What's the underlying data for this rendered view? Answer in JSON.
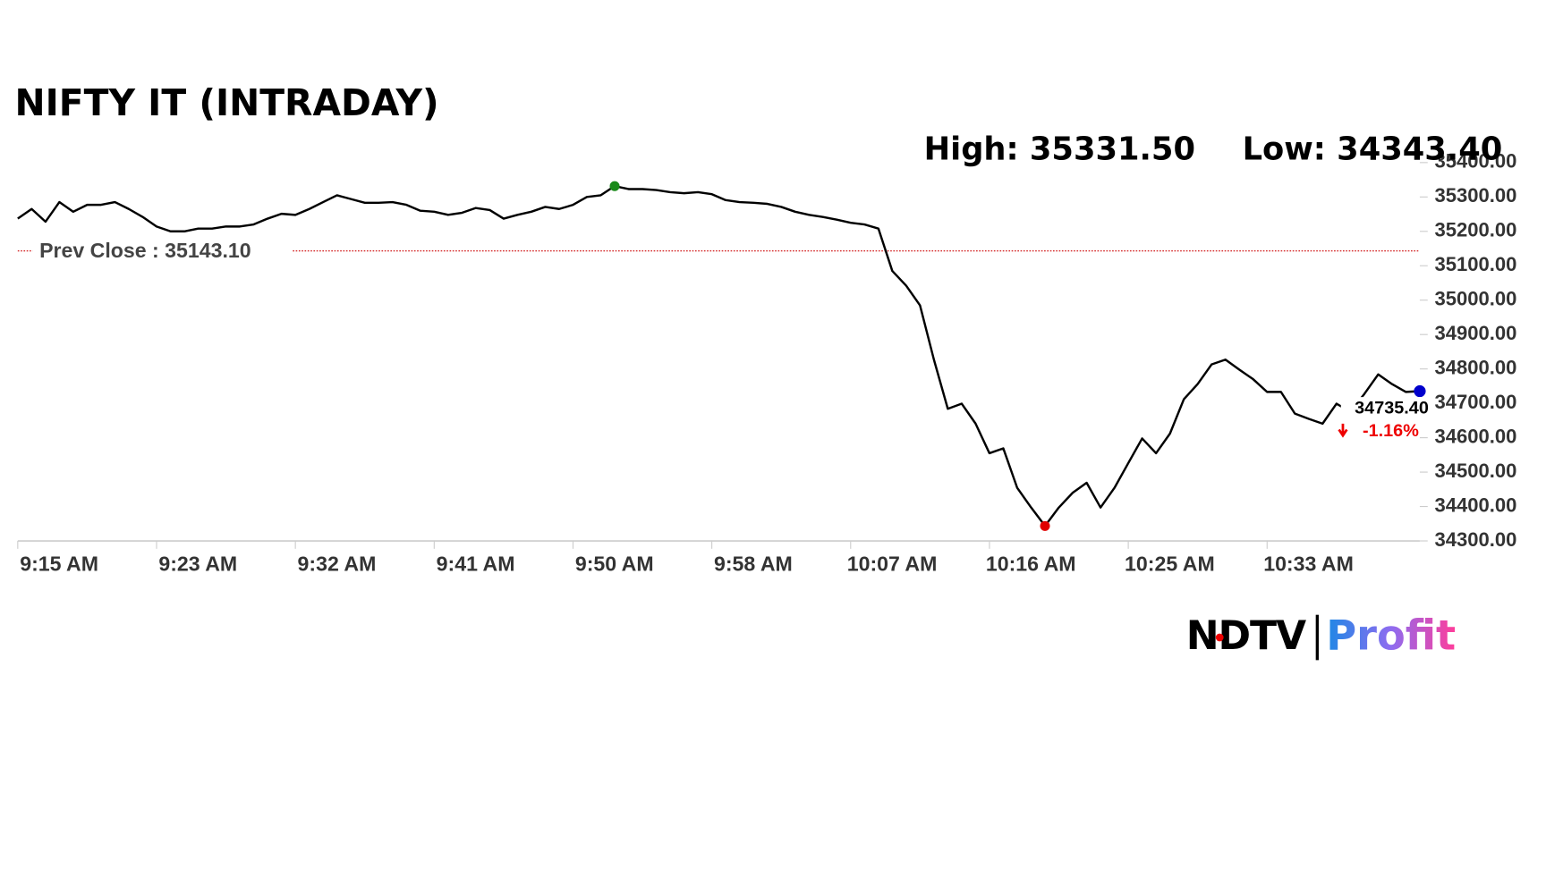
{
  "chart_data": {
    "type": "line",
    "title": "NIFTY IT (INTRADAY)",
    "high_label": "High: 35331.50",
    "low_label": "Low: 34343.40",
    "prev_close": 35143.1,
    "prev_close_label": "Prev Close : 35143.10",
    "last_label": "34735.40",
    "change_label": "-1.16%",
    "color": "#000000",
    "prev_close_color": "#cc0000",
    "high_color": "#1a8a1a",
    "low_color": "#e00000",
    "last_color": "#0000cc",
    "categories": [
      "9:15 AM",
      null,
      null,
      null,
      null,
      null,
      null,
      null,
      null,
      null,
      "9:23 AM",
      null,
      null,
      null,
      null,
      null,
      null,
      null,
      null,
      null,
      "9:32 AM",
      null,
      null,
      null,
      null,
      null,
      null,
      null,
      null,
      null,
      "9:41 AM",
      null,
      null,
      null,
      null,
      null,
      null,
      null,
      null,
      null,
      "9:50 AM",
      null,
      null,
      null,
      null,
      null,
      null,
      null,
      null,
      null,
      "9:58 AM",
      null,
      null,
      null,
      null,
      null,
      null,
      null,
      null,
      null,
      "10:07 AM",
      null,
      null,
      null,
      null,
      null,
      null,
      null,
      null,
      null,
      "10:16 AM",
      null,
      null,
      null,
      null,
      null,
      null,
      null,
      null,
      null,
      "10:25 AM",
      null,
      null,
      null,
      null,
      null,
      null,
      null,
      null,
      null,
      "10:33 AM",
      null,
      null,
      null,
      null,
      null,
      null,
      null,
      null,
      null,
      null,
      null
    ],
    "values": [
      35237,
      35265,
      35228,
      35285,
      35257,
      35277,
      35277,
      35285,
      35265,
      35242,
      35214,
      35200,
      35200,
      35208,
      35208,
      35214,
      35214,
      35220,
      35237,
      35251,
      35248,
      35265,
      35285,
      35305,
      35294,
      35283,
      35283,
      35285,
      35277,
      35260,
      35257,
      35248,
      35254,
      35268,
      35262,
      35237,
      35248,
      35257,
      35271,
      35265,
      35277,
      35300,
      35305,
      35331.5,
      35323,
      35323,
      35320,
      35314,
      35311,
      35314,
      35308,
      35291,
      35285,
      35283,
      35280,
      35271,
      35257,
      35248,
      35242,
      35234,
      35225,
      35220,
      35208,
      35085,
      35042,
      34985,
      34827,
      34684,
      34699,
      34641,
      34555,
      34569,
      34454,
      34397,
      34343.4,
      34397,
      34440,
      34469,
      34397,
      34454,
      34526,
      34598,
      34555,
      34612,
      34712,
      34756,
      34813,
      34827,
      34798,
      34770,
      34733,
      34733,
      34670,
      34655,
      34641,
      34699,
      34675,
      34727,
      34784,
      34756,
      34733,
      34735.4
    ],
    "ylim": [
      34300,
      35400
    ],
    "yticks": [
      {
        "value": 34300,
        "label": "34300.00"
      },
      {
        "value": 34400,
        "label": "34400.00"
      },
      {
        "value": 34500,
        "label": "34500.00"
      },
      {
        "value": 34600,
        "label": "34600.00"
      },
      {
        "value": 34700,
        "label": "34700.00"
      },
      {
        "value": 34800,
        "label": "34800.00"
      },
      {
        "value": 34900,
        "label": "34900.00"
      },
      {
        "value": 35000,
        "label": "35000.00"
      },
      {
        "value": 35100,
        "label": "35100.00"
      },
      {
        "value": 35200,
        "label": "35200.00"
      },
      {
        "value": 35300,
        "label": "35300.00"
      },
      {
        "value": 35400,
        "label": "35400.00"
      }
    ],
    "grid": false
  },
  "logo": {
    "left": "NDTV",
    "right": "Profit"
  }
}
